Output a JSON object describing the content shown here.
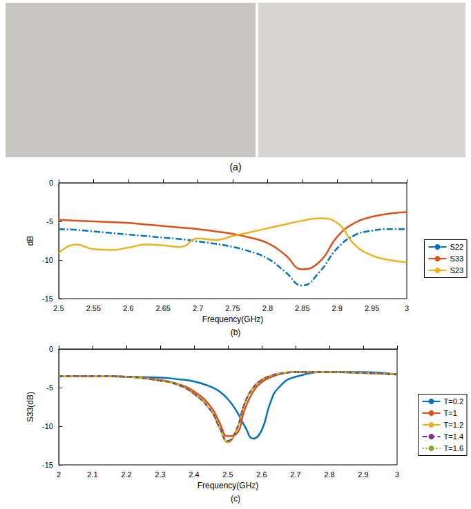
{
  "photo": {
    "caption": "(a)"
  },
  "chart_data": [
    {
      "type": "line",
      "caption": "(b)",
      "x_label": "Frequency(GHz)",
      "y_label": "dB",
      "x": [
        2.5,
        2.525,
        2.55,
        2.575,
        2.6,
        2.625,
        2.65,
        2.675,
        2.7,
        2.725,
        2.75,
        2.775,
        2.8,
        2.825,
        2.85,
        2.875,
        2.9,
        2.925,
        2.95,
        2.975,
        3
      ],
      "series": [
        {
          "name": "S22",
          "color": "#0072BD",
          "line_style": "dashdot",
          "values": [
            -6.0,
            -6.1,
            -6.3,
            -6.5,
            -6.7,
            -6.9,
            -7.1,
            -7.3,
            -7.6,
            -7.9,
            -8.3,
            -8.9,
            -9.8,
            -11.5,
            -13.3,
            -11.5,
            -8.5,
            -6.8,
            -6.2,
            -6.0,
            -6.0
          ]
        },
        {
          "name": "S33",
          "color": "#D95319",
          "line_style": "solid",
          "values": [
            -4.8,
            -4.9,
            -5.0,
            -5.1,
            -5.2,
            -5.4,
            -5.6,
            -5.8,
            -6.0,
            -6.3,
            -6.6,
            -7.1,
            -7.8,
            -9.3,
            -11.2,
            -10.2,
            -7.0,
            -5.2,
            -4.4,
            -4.0,
            -3.8
          ]
        },
        {
          "name": "S23",
          "color": "#EDB120",
          "line_style": "solid",
          "values": [
            -9.1,
            -8.0,
            -8.6,
            -8.7,
            -8.4,
            -8.0,
            -8.1,
            -8.3,
            -7.2,
            -7.4,
            -6.9,
            -6.4,
            -5.9,
            -5.4,
            -4.9,
            -4.6,
            -5.2,
            -8.0,
            -9.4,
            -10.0,
            -10.3
          ]
        }
      ],
      "xlim": [
        2.5,
        3
      ],
      "xticks": [
        2.5,
        2.55,
        2.6,
        2.65,
        2.7,
        2.75,
        2.8,
        2.85,
        2.9,
        2.95,
        3
      ],
      "ylim": [
        -15,
        0
      ],
      "yticks": [
        -15,
        -10,
        -5,
        0
      ],
      "grid": false,
      "legend": "right"
    },
    {
      "type": "line",
      "caption": "(c)",
      "x_label": "Frequency(GHz)",
      "y_label": "S33(dB)",
      "x": [
        2,
        2.1,
        2.2,
        2.3,
        2.35,
        2.4,
        2.45,
        2.475,
        2.5,
        2.525,
        2.55,
        2.575,
        2.6,
        2.625,
        2.65,
        2.7,
        2.8,
        2.9,
        3
      ],
      "series": [
        {
          "name": "T=0.2",
          "color": "#0072BD",
          "line_style": "solid",
          "values": [
            -3.5,
            -3.5,
            -3.6,
            -3.7,
            -3.9,
            -4.2,
            -4.9,
            -5.5,
            -6.5,
            -8.0,
            -10.0,
            -11.6,
            -10.5,
            -7.0,
            -5.0,
            -3.6,
            -3.0,
            -3.0,
            -3.3
          ]
        },
        {
          "name": "T=1",
          "color": "#D95319",
          "line_style": "solid",
          "values": [
            -3.5,
            -3.5,
            -3.6,
            -4.0,
            -4.5,
            -5.5,
            -7.5,
            -9.5,
            -11.3,
            -11.0,
            -7.8,
            -5.5,
            -4.3,
            -3.7,
            -3.3,
            -3.0,
            -3.0,
            -3.1,
            -3.3
          ]
        },
        {
          "name": "T=1.2",
          "color": "#EDB120",
          "line_style": "solid",
          "values": [
            -3.5,
            -3.5,
            -3.6,
            -4.1,
            -4.6,
            -5.8,
            -8.0,
            -10.2,
            -12.1,
            -10.5,
            -7.0,
            -5.0,
            -4.0,
            -3.5,
            -3.2,
            -3.0,
            -3.0,
            -3.1,
            -3.3
          ]
        },
        {
          "name": "T=1.4",
          "color": "#7E2F8E",
          "line_style": "dashed",
          "values": [
            -3.5,
            -3.5,
            -3.6,
            -4.1,
            -4.6,
            -5.8,
            -8.0,
            -10.1,
            -11.9,
            -10.5,
            -7.0,
            -5.0,
            -4.0,
            -3.5,
            -3.2,
            -3.0,
            -3.0,
            -3.1,
            -3.3
          ]
        },
        {
          "name": "T=1.6",
          "color": "#77AC30",
          "line_style": "dotted",
          "values": [
            -3.5,
            -3.5,
            -3.6,
            -4.1,
            -4.6,
            -5.8,
            -8.0,
            -10.1,
            -12.0,
            -10.5,
            -7.0,
            -5.0,
            -4.0,
            -3.5,
            -3.2,
            -3.0,
            -3.0,
            -3.1,
            -3.3
          ]
        }
      ],
      "xlim": [
        2,
        3
      ],
      "xticks": [
        2,
        2.1,
        2.2,
        2.3,
        2.4,
        2.5,
        2.6,
        2.7,
        2.8,
        2.9,
        3
      ],
      "ylim": [
        -15,
        0
      ],
      "yticks": [
        -15,
        -10,
        -5,
        0
      ],
      "grid": false,
      "legend": "right"
    }
  ]
}
